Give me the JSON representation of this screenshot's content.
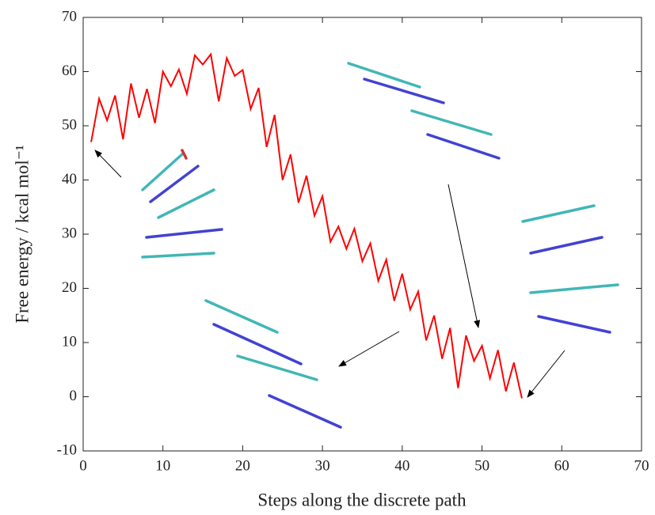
{
  "chart_data": {
    "type": "line",
    "x_label": "Steps along the discrete path",
    "y_label": "Free energy / kcal mol⁻¹",
    "x": [
      1,
      2,
      3,
      4,
      5,
      6,
      7,
      8,
      9,
      10,
      11,
      12,
      13,
      14,
      15,
      16,
      17,
      18,
      19,
      20,
      21,
      22,
      23,
      24,
      25,
      26,
      27,
      28,
      29,
      30,
      31,
      32,
      33,
      34,
      35,
      36,
      37,
      38,
      39,
      40,
      41,
      42,
      43,
      44,
      45,
      46,
      47,
      48,
      49,
      50,
      51,
      52,
      53,
      54,
      55
    ],
    "series": [
      {
        "color": "#ff0000",
        "values": [
          47,
          55,
          51,
          55.6,
          47.5,
          57.8,
          51.5,
          56.8,
          50.5,
          60,
          57.3,
          60.4,
          55.9,
          63,
          61.3,
          63.2,
          54.5,
          62.5,
          59.2,
          60.3,
          53.1,
          57,
          46.1,
          52,
          40,
          44.7,
          35.8,
          40.8,
          33.4,
          37,
          28.6,
          31.4,
          27.3,
          31,
          25,
          28.3,
          21.4,
          25.3,
          17.7,
          22.7,
          16.1,
          19.4,
          10.4,
          15,
          7,
          12.7,
          1.6,
          11.3,
          6.6,
          9.4,
          3.4,
          8.6,
          1,
          6.3,
          -0.3
        ]
      }
    ],
    "xlim": [
      0,
      70
    ],
    "ylim": [
      -10,
      70
    ],
    "xticks": [
      0,
      10,
      20,
      30,
      40,
      50,
      60,
      70
    ],
    "yticks": [
      -10,
      0,
      10,
      20,
      30,
      40,
      50,
      60,
      70
    ]
  }
}
